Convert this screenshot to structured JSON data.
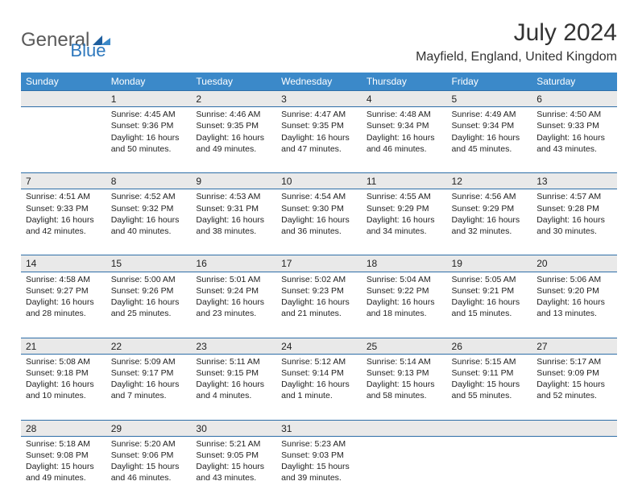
{
  "brand": {
    "general": "General",
    "blue": "Blue"
  },
  "title": "July 2024",
  "location": "Mayfield, England, United Kingdom",
  "colors": {
    "header_bg": "#3b89c9",
    "header_text": "#ffffff",
    "row_divider": "#2e6ea8",
    "daynum_bg": "#e9e9e9",
    "body_text": "#222222",
    "logo_general": "#5a5a5a",
    "logo_blue": "#2e78bd",
    "logo_triangle1": "#1f5f9e",
    "logo_triangle2": "#3b89c9"
  },
  "typography": {
    "title_fontsize": 30,
    "location_fontsize": 16,
    "dayheader_fontsize": 12,
    "daynum_fontsize": 12,
    "cell_fontsize": 10.5,
    "logo_fontsize": 24
  },
  "day_headers": [
    "Sunday",
    "Monday",
    "Tuesday",
    "Wednesday",
    "Thursday",
    "Friday",
    "Saturday"
  ],
  "weeks": [
    {
      "nums": [
        "",
        "1",
        "2",
        "3",
        "4",
        "5",
        "6"
      ],
      "cells": [
        null,
        {
          "sunrise": "Sunrise: 4:45 AM",
          "sunset": "Sunset: 9:36 PM",
          "day1": "Daylight: 16 hours",
          "day2": "and 50 minutes."
        },
        {
          "sunrise": "Sunrise: 4:46 AM",
          "sunset": "Sunset: 9:35 PM",
          "day1": "Daylight: 16 hours",
          "day2": "and 49 minutes."
        },
        {
          "sunrise": "Sunrise: 4:47 AM",
          "sunset": "Sunset: 9:35 PM",
          "day1": "Daylight: 16 hours",
          "day2": "and 47 minutes."
        },
        {
          "sunrise": "Sunrise: 4:48 AM",
          "sunset": "Sunset: 9:34 PM",
          "day1": "Daylight: 16 hours",
          "day2": "and 46 minutes."
        },
        {
          "sunrise": "Sunrise: 4:49 AM",
          "sunset": "Sunset: 9:34 PM",
          "day1": "Daylight: 16 hours",
          "day2": "and 45 minutes."
        },
        {
          "sunrise": "Sunrise: 4:50 AM",
          "sunset": "Sunset: 9:33 PM",
          "day1": "Daylight: 16 hours",
          "day2": "and 43 minutes."
        }
      ]
    },
    {
      "nums": [
        "7",
        "8",
        "9",
        "10",
        "11",
        "12",
        "13"
      ],
      "cells": [
        {
          "sunrise": "Sunrise: 4:51 AM",
          "sunset": "Sunset: 9:33 PM",
          "day1": "Daylight: 16 hours",
          "day2": "and 42 minutes."
        },
        {
          "sunrise": "Sunrise: 4:52 AM",
          "sunset": "Sunset: 9:32 PM",
          "day1": "Daylight: 16 hours",
          "day2": "and 40 minutes."
        },
        {
          "sunrise": "Sunrise: 4:53 AM",
          "sunset": "Sunset: 9:31 PM",
          "day1": "Daylight: 16 hours",
          "day2": "and 38 minutes."
        },
        {
          "sunrise": "Sunrise: 4:54 AM",
          "sunset": "Sunset: 9:30 PM",
          "day1": "Daylight: 16 hours",
          "day2": "and 36 minutes."
        },
        {
          "sunrise": "Sunrise: 4:55 AM",
          "sunset": "Sunset: 9:29 PM",
          "day1": "Daylight: 16 hours",
          "day2": "and 34 minutes."
        },
        {
          "sunrise": "Sunrise: 4:56 AM",
          "sunset": "Sunset: 9:29 PM",
          "day1": "Daylight: 16 hours",
          "day2": "and 32 minutes."
        },
        {
          "sunrise": "Sunrise: 4:57 AM",
          "sunset": "Sunset: 9:28 PM",
          "day1": "Daylight: 16 hours",
          "day2": "and 30 minutes."
        }
      ]
    },
    {
      "nums": [
        "14",
        "15",
        "16",
        "17",
        "18",
        "19",
        "20"
      ],
      "cells": [
        {
          "sunrise": "Sunrise: 4:58 AM",
          "sunset": "Sunset: 9:27 PM",
          "day1": "Daylight: 16 hours",
          "day2": "and 28 minutes."
        },
        {
          "sunrise": "Sunrise: 5:00 AM",
          "sunset": "Sunset: 9:26 PM",
          "day1": "Daylight: 16 hours",
          "day2": "and 25 minutes."
        },
        {
          "sunrise": "Sunrise: 5:01 AM",
          "sunset": "Sunset: 9:24 PM",
          "day1": "Daylight: 16 hours",
          "day2": "and 23 minutes."
        },
        {
          "sunrise": "Sunrise: 5:02 AM",
          "sunset": "Sunset: 9:23 PM",
          "day1": "Daylight: 16 hours",
          "day2": "and 21 minutes."
        },
        {
          "sunrise": "Sunrise: 5:04 AM",
          "sunset": "Sunset: 9:22 PM",
          "day1": "Daylight: 16 hours",
          "day2": "and 18 minutes."
        },
        {
          "sunrise": "Sunrise: 5:05 AM",
          "sunset": "Sunset: 9:21 PM",
          "day1": "Daylight: 16 hours",
          "day2": "and 15 minutes."
        },
        {
          "sunrise": "Sunrise: 5:06 AM",
          "sunset": "Sunset: 9:20 PM",
          "day1": "Daylight: 16 hours",
          "day2": "and 13 minutes."
        }
      ]
    },
    {
      "nums": [
        "21",
        "22",
        "23",
        "24",
        "25",
        "26",
        "27"
      ],
      "cells": [
        {
          "sunrise": "Sunrise: 5:08 AM",
          "sunset": "Sunset: 9:18 PM",
          "day1": "Daylight: 16 hours",
          "day2": "and 10 minutes."
        },
        {
          "sunrise": "Sunrise: 5:09 AM",
          "sunset": "Sunset: 9:17 PM",
          "day1": "Daylight: 16 hours",
          "day2": "and 7 minutes."
        },
        {
          "sunrise": "Sunrise: 5:11 AM",
          "sunset": "Sunset: 9:15 PM",
          "day1": "Daylight: 16 hours",
          "day2": "and 4 minutes."
        },
        {
          "sunrise": "Sunrise: 5:12 AM",
          "sunset": "Sunset: 9:14 PM",
          "day1": "Daylight: 16 hours",
          "day2": "and 1 minute."
        },
        {
          "sunrise": "Sunrise: 5:14 AM",
          "sunset": "Sunset: 9:13 PM",
          "day1": "Daylight: 15 hours",
          "day2": "and 58 minutes."
        },
        {
          "sunrise": "Sunrise: 5:15 AM",
          "sunset": "Sunset: 9:11 PM",
          "day1": "Daylight: 15 hours",
          "day2": "and 55 minutes."
        },
        {
          "sunrise": "Sunrise: 5:17 AM",
          "sunset": "Sunset: 9:09 PM",
          "day1": "Daylight: 15 hours",
          "day2": "and 52 minutes."
        }
      ]
    },
    {
      "nums": [
        "28",
        "29",
        "30",
        "31",
        "",
        "",
        ""
      ],
      "cells": [
        {
          "sunrise": "Sunrise: 5:18 AM",
          "sunset": "Sunset: 9:08 PM",
          "day1": "Daylight: 15 hours",
          "day2": "and 49 minutes."
        },
        {
          "sunrise": "Sunrise: 5:20 AM",
          "sunset": "Sunset: 9:06 PM",
          "day1": "Daylight: 15 hours",
          "day2": "and 46 minutes."
        },
        {
          "sunrise": "Sunrise: 5:21 AM",
          "sunset": "Sunset: 9:05 PM",
          "day1": "Daylight: 15 hours",
          "day2": "and 43 minutes."
        },
        {
          "sunrise": "Sunrise: 5:23 AM",
          "sunset": "Sunset: 9:03 PM",
          "day1": "Daylight: 15 hours",
          "day2": "and 39 minutes."
        },
        null,
        null,
        null
      ]
    }
  ]
}
